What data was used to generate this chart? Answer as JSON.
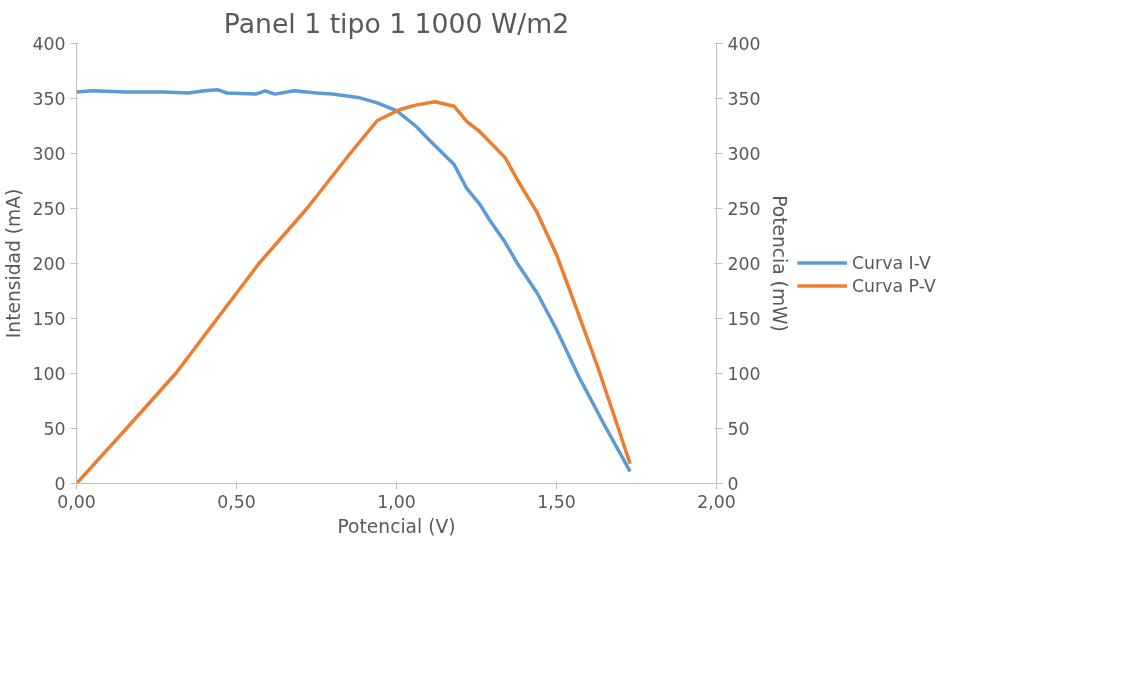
{
  "chart_data": {
    "type": "line",
    "title": "Panel 1 tipo 1 1000 W/m2",
    "xlabel": "Potencial (V)",
    "ylabel": "Intensidad (mA)",
    "y2label": "Potencia (mW)",
    "xlim": [
      0,
      2
    ],
    "xticks": [
      {
        "value": 0,
        "label": "0,00"
      },
      {
        "value": 0.5,
        "label": "0,50"
      },
      {
        "value": 1,
        "label": "1,00"
      },
      {
        "value": 1.5,
        "label": "1,50"
      },
      {
        "value": 2,
        "label": "2,00"
      }
    ],
    "ylim": [
      0,
      400
    ],
    "yticks": [
      0,
      50,
      100,
      150,
      200,
      250,
      300,
      350,
      400
    ],
    "y2lim": [
      0,
      400
    ],
    "y2ticks": [
      0,
      50,
      100,
      150,
      200,
      250,
      300,
      350,
      400
    ],
    "grid": false,
    "legend": "right",
    "marker": "none",
    "line_style": "solid",
    "series": [
      {
        "name": "Curva I-V",
        "color": "#5b9bd5",
        "x": [
          0,
          0.05,
          0.15,
          0.27,
          0.35,
          0.4,
          0.44,
          0.47,
          0.56,
          0.59,
          0.62,
          0.68,
          0.75,
          0.8,
          0.88,
          0.94,
          1.0,
          1.06,
          1.1,
          1.18,
          1.22,
          1.26,
          1.29,
          1.34,
          1.38,
          1.44,
          1.5,
          1.57,
          1.65,
          1.73
        ],
        "values": [
          356,
          357,
          356,
          356,
          355,
          357,
          358,
          355,
          354,
          357,
          354,
          357,
          355,
          354,
          351,
          346,
          339,
          325,
          313,
          290,
          268,
          254,
          240,
          219,
          199,
          173,
          140,
          97,
          53,
          11
        ]
      },
      {
        "name": "Curva P-V",
        "color": "#ed7d31",
        "axis": "y2",
        "x": [
          0,
          0.156,
          0.31,
          0.44,
          0.57,
          0.72,
          0.855,
          0.94,
          1.01,
          1.06,
          1.12,
          1.18,
          1.22,
          1.26,
          1.29,
          1.34,
          1.38,
          1.44,
          1.5,
          1.56,
          1.63,
          1.69,
          1.73
        ],
        "values": [
          0,
          50,
          100,
          150,
          200,
          250,
          300,
          330,
          340,
          344,
          347,
          343,
          329,
          320,
          311,
          296,
          275,
          246,
          208,
          161,
          105,
          53,
          18
        ]
      }
    ]
  }
}
